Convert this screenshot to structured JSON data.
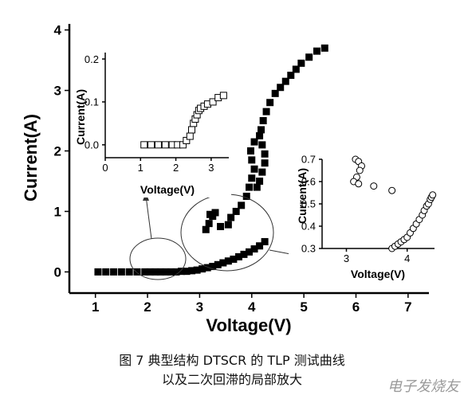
{
  "chart_data": [
    {
      "id": "main",
      "type": "scatter",
      "title": "",
      "xlabel": "Voltage(V)",
      "ylabel": "Current(A)",
      "xlim": [
        0.5,
        7.4
      ],
      "ylim": [
        -0.35,
        4.1
      ],
      "xticks": [
        "1",
        "2",
        "3",
        "4",
        "5",
        "6",
        "7"
      ],
      "yticks": [
        "0",
        "1",
        "2",
        "3",
        "4"
      ],
      "grid": false,
      "legend": "none",
      "marker": "filled-square",
      "color": "#000000",
      "series": [
        {
          "points": [
            [
              1.05,
              0.0
            ],
            [
              1.2,
              0.0
            ],
            [
              1.35,
              0.0
            ],
            [
              1.5,
              0.0
            ],
            [
              1.65,
              0.0
            ],
            [
              1.8,
              0.0
            ],
            [
              1.95,
              0.0
            ],
            [
              2.05,
              0.0
            ],
            [
              2.15,
              0.0
            ],
            [
              2.25,
              0.0
            ],
            [
              2.35,
              0.0
            ],
            [
              2.45,
              0.0
            ],
            [
              2.55,
              0.0
            ],
            [
              2.65,
              0.01
            ],
            [
              2.75,
              0.01
            ],
            [
              2.85,
              0.02
            ],
            [
              2.95,
              0.03
            ],
            [
              3.05,
              0.05
            ],
            [
              3.15,
              0.07
            ],
            [
              3.25,
              0.09
            ],
            [
              3.35,
              0.12
            ],
            [
              3.45,
              0.15
            ],
            [
              3.55,
              0.18
            ],
            [
              3.65,
              0.21
            ],
            [
              3.75,
              0.25
            ],
            [
              3.85,
              0.29
            ],
            [
              3.95,
              0.33
            ],
            [
              4.05,
              0.38
            ],
            [
              4.15,
              0.43
            ],
            [
              4.25,
              0.5
            ],
            [
              3.12,
              0.7
            ],
            [
              3.18,
              0.8
            ],
            [
              3.25,
              0.92
            ],
            [
              3.3,
              0.98
            ],
            [
              3.2,
              0.95
            ],
            [
              3.6,
              0.9
            ],
            [
              3.55,
              0.78
            ],
            [
              3.4,
              0.75
            ],
            [
              3.7,
              1.0
            ],
            [
              3.8,
              1.1
            ],
            [
              3.9,
              1.25
            ],
            [
              3.95,
              1.4
            ],
            [
              4.0,
              1.55
            ],
            [
              4.05,
              1.7
            ],
            [
              4.0,
              1.85
            ],
            [
              3.98,
              2.0
            ],
            [
              4.05,
              2.15
            ],
            [
              4.15,
              2.25
            ],
            [
              4.2,
              2.1
            ],
            [
              4.25,
              1.95
            ],
            [
              4.25,
              1.8
            ],
            [
              4.2,
              1.65
            ],
            [
              4.15,
              1.5
            ],
            [
              4.1,
              1.4
            ],
            [
              4.18,
              2.35
            ],
            [
              4.22,
              2.5
            ],
            [
              4.28,
              2.65
            ],
            [
              4.35,
              2.8
            ],
            [
              4.45,
              2.95
            ],
            [
              4.55,
              3.05
            ],
            [
              4.65,
              3.15
            ],
            [
              4.75,
              3.25
            ],
            [
              4.85,
              3.35
            ],
            [
              4.95,
              3.45
            ],
            [
              5.1,
              3.55
            ],
            [
              5.25,
              3.65
            ],
            [
              5.4,
              3.7
            ]
          ]
        }
      ]
    },
    {
      "id": "inset-left",
      "type": "scatter",
      "xlabel": "Voltage(V)",
      "ylabel": "Current(A)",
      "xlim": [
        0,
        3.5
      ],
      "ylim": [
        -0.03,
        0.215
      ],
      "xticks": [
        "0",
        "1",
        "2",
        "3"
      ],
      "yticks": [
        "0.0",
        "0.1",
        "0.2"
      ],
      "marker": "open-square",
      "color": "#000000",
      "series": [
        {
          "points": [
            [
              1.1,
              0.0
            ],
            [
              1.3,
              0.0
            ],
            [
              1.5,
              0.0
            ],
            [
              1.7,
              0.0
            ],
            [
              1.9,
              0.0
            ],
            [
              2.05,
              0.0
            ],
            [
              2.2,
              0.0
            ],
            [
              2.3,
              0.01
            ],
            [
              2.4,
              0.02
            ],
            [
              2.45,
              0.035
            ],
            [
              2.5,
              0.05
            ],
            [
              2.55,
              0.06
            ],
            [
              2.6,
              0.07
            ],
            [
              2.65,
              0.08
            ],
            [
              2.7,
              0.085
            ],
            [
              2.8,
              0.09
            ],
            [
              2.9,
              0.095
            ],
            [
              3.05,
              0.1
            ],
            [
              3.2,
              0.11
            ],
            [
              3.35,
              0.115
            ]
          ]
        }
      ]
    },
    {
      "id": "inset-right",
      "type": "scatter",
      "xlabel": "Voltage(V)",
      "ylabel": "Current(A)",
      "xlim": [
        2.6,
        4.45
      ],
      "ylim": [
        0.3,
        0.7
      ],
      "xticks": [
        "3",
        "4"
      ],
      "yticks": [
        "0.3",
        "0.4",
        "0.5",
        "0.6",
        "0.7"
      ],
      "marker": "open-circle",
      "color": "#000000",
      "series": [
        {
          "points": [
            [
              3.15,
              0.7
            ],
            [
              3.2,
              0.69
            ],
            [
              3.25,
              0.67
            ],
            [
              3.22,
              0.65
            ],
            [
              3.17,
              0.62
            ],
            [
              3.12,
              0.6
            ],
            [
              3.2,
              0.59
            ],
            [
              3.45,
              0.58
            ],
            [
              3.75,
              0.56
            ],
            [
              3.75,
              0.3
            ],
            [
              3.8,
              0.31
            ],
            [
              3.85,
              0.32
            ],
            [
              3.9,
              0.33
            ],
            [
              3.95,
              0.34
            ],
            [
              4.0,
              0.35
            ],
            [
              4.05,
              0.37
            ],
            [
              4.1,
              0.39
            ],
            [
              4.15,
              0.41
            ],
            [
              4.2,
              0.43
            ],
            [
              4.25,
              0.45
            ],
            [
              4.28,
              0.47
            ],
            [
              4.32,
              0.49
            ],
            [
              4.35,
              0.5
            ],
            [
              4.38,
              0.52
            ],
            [
              4.4,
              0.53
            ],
            [
              4.42,
              0.54
            ]
          ]
        }
      ]
    }
  ],
  "caption": {
    "line1": "图 7 典型结构 DTSCR 的 TLP 测试曲线",
    "line2": "以及二次回滞的局部放大"
  },
  "watermark": "电子发烧友"
}
